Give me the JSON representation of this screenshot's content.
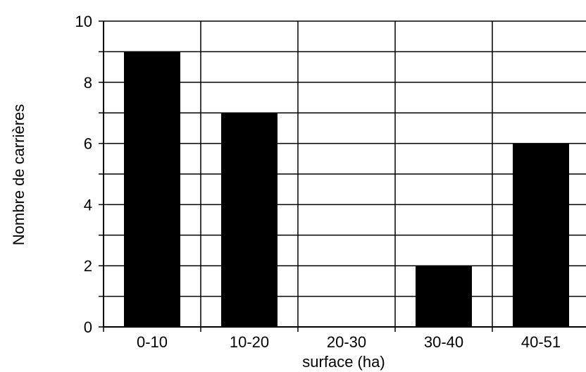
{
  "chart_data": {
    "type": "bar",
    "categories": [
      "0-10",
      "10-20",
      "20-30",
      "30-40",
      "40-51"
    ],
    "values": [
      9,
      7,
      0,
      2,
      6
    ],
    "title": "",
    "xlabel": "surface (ha)",
    "ylabel": "Nombre de carrières",
    "ylim": [
      0,
      10
    ],
    "yticks": [
      "0",
      "2",
      "4",
      "6",
      "8",
      "10"
    ],
    "grid": true,
    "bar_color": "#000000"
  }
}
